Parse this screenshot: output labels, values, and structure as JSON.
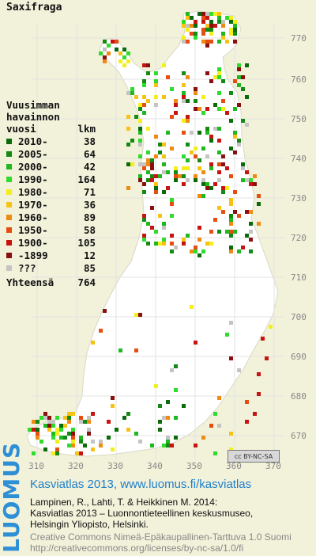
{
  "title": "Saxifraga",
  "legend": {
    "heading": [
      "Vuusimman",
      "havainnon",
      "vuosi"
    ],
    "count_header": "lkm",
    "items": [
      {
        "label": "2010-",
        "count": "38",
        "color": "#0b6b0b"
      },
      {
        "label": "2005-",
        "count": "64",
        "color": "#138a13"
      },
      {
        "label": "2000-",
        "count": "42",
        "color": "#1fb81f"
      },
      {
        "label": "1990-",
        "count": "164",
        "color": "#2edc2e"
      },
      {
        "label": "1980-",
        "count": "71",
        "color": "#f4ef1a"
      },
      {
        "label": "1970-",
        "count": "36",
        "color": "#f6c313"
      },
      {
        "label": "1960-",
        "count": "89",
        "color": "#f08a12"
      },
      {
        "label": "1950-",
        "count": "58",
        "color": "#e54e10"
      },
      {
        "label": "1900-",
        "count": "105",
        "color": "#c81410"
      },
      {
        "label": "-1899",
        "count": "12",
        "color": "#8a1010"
      },
      {
        "label": "???",
        "count": "85",
        "color": "#c4c4c4"
      }
    ],
    "total_label": "Yhteensä",
    "total_count": "764"
  },
  "y_ticks": [
    "770",
    "760",
    "750",
    "740",
    "730",
    "720",
    "710",
    "700",
    "690",
    "680",
    "670"
  ],
  "x_ticks": [
    "310",
    "320",
    "330",
    "340",
    "350",
    "360",
    "370"
  ],
  "license_badge": "cc BY-NC-SA",
  "footer": {
    "brand": "LUOMUS",
    "headline": "Kasviatlas 2013, www.luomus.fi/kasviatlas",
    "citation": [
      "Lampinen, R., Lahti, T. & Heikkinen M. 2014:",
      "Kasviatlas 2013 – Luonnontieteellinen keskusmuseo,",
      "Helsingin Yliopisto, Helsinki."
    ],
    "license": [
      "Creative Commons Nimeä-Epäkaupallinen-Tarttuva 1.0 Suomi",
      "http://creativecommons.org/licenses/by-nc-sa/1.0/fi"
    ]
  },
  "colors": {
    "map_fill": "#ffffff",
    "background": "#f2f1da",
    "accent": "#2d8fd6"
  }
}
